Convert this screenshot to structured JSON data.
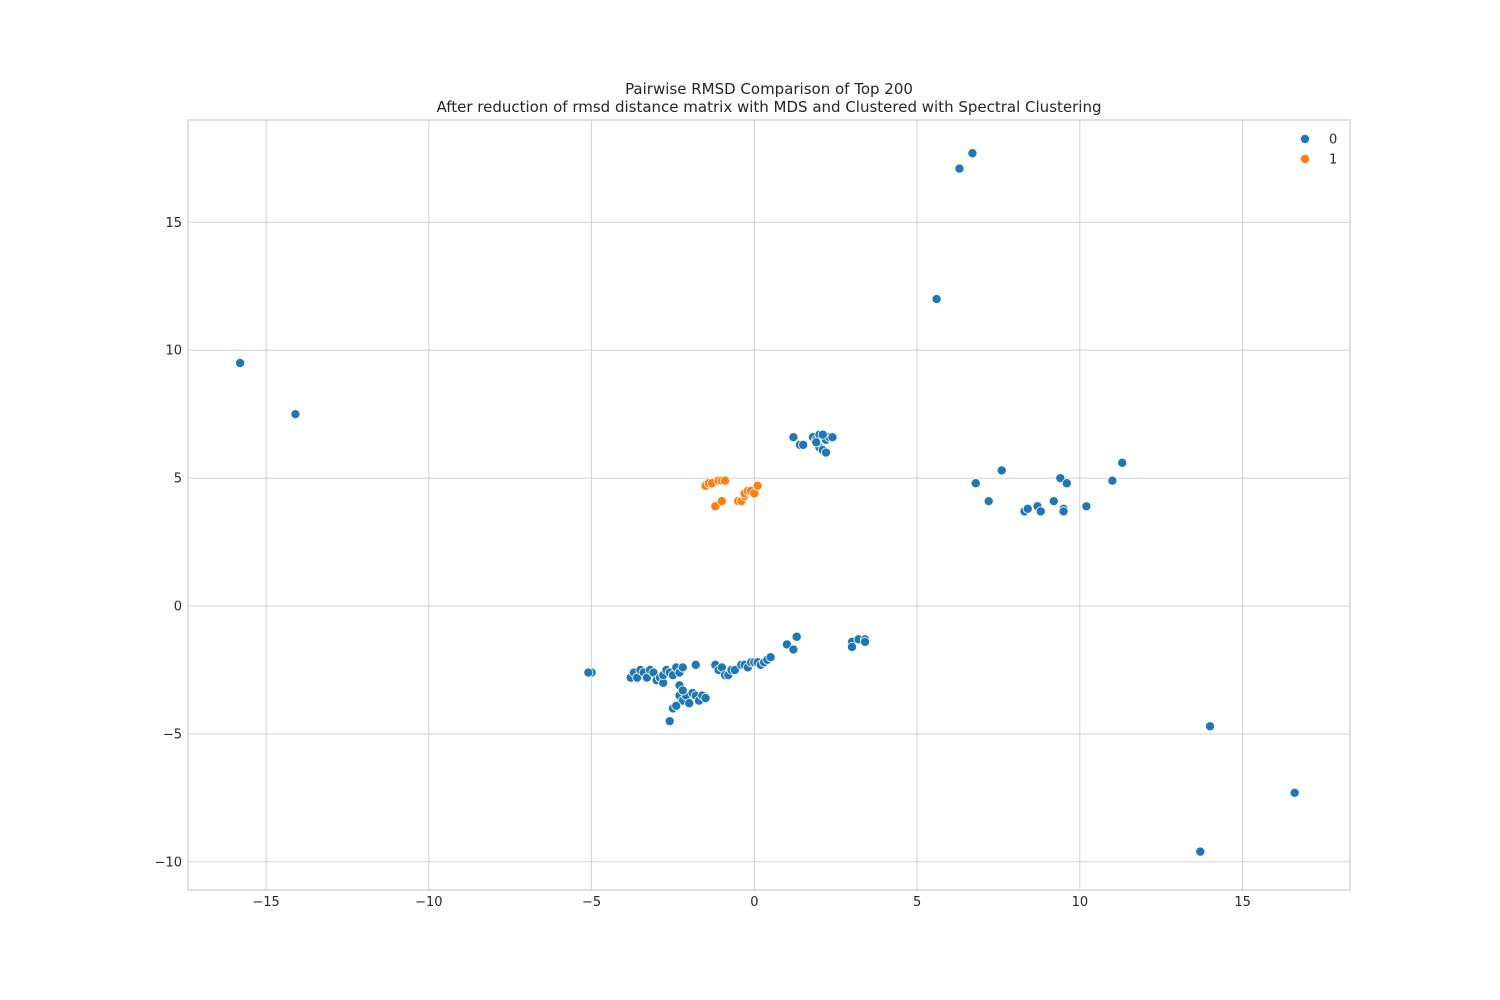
{
  "chart_data": {
    "type": "scatter",
    "title": "Pairwise RMSD Comparison of Top 200",
    "subtitle": "After reduction of rmsd distance matrix with MDS and Clustered with Spectral Clustering",
    "xlabel": "",
    "ylabel": "",
    "xlim": [
      -17.4,
      18.3
    ],
    "ylim": [
      -11.1,
      19.0
    ],
    "xticks": [
      -15,
      -10,
      -5,
      0,
      5,
      10,
      15
    ],
    "yticks": [
      -10,
      -5,
      0,
      5,
      10,
      15
    ],
    "xtick_labels": [
      "−15",
      "−10",
      "−5",
      "0",
      "5",
      "10",
      "15"
    ],
    "ytick_labels": [
      "−10",
      "−5",
      "0",
      "5",
      "10",
      "15"
    ],
    "grid": true,
    "legend_position": "top-right",
    "series": [
      {
        "name": "0",
        "color": "#1f77b4",
        "points": [
          [
            -15.8,
            9.5
          ],
          [
            -14.1,
            7.5
          ],
          [
            5.6,
            12.0
          ],
          [
            6.3,
            17.1
          ],
          [
            6.7,
            17.7
          ],
          [
            1.2,
            6.6
          ],
          [
            1.4,
            6.3
          ],
          [
            1.5,
            6.3
          ],
          [
            1.8,
            6.6
          ],
          [
            1.9,
            6.5
          ],
          [
            2.0,
            6.7
          ],
          [
            2.0,
            6.2
          ],
          [
            2.1,
            6.1
          ],
          [
            2.2,
            6.0
          ],
          [
            2.2,
            6.5
          ],
          [
            2.3,
            6.6
          ],
          [
            2.4,
            6.6
          ],
          [
            1.9,
            6.4
          ],
          [
            2.1,
            6.7
          ],
          [
            6.8,
            4.8
          ],
          [
            7.2,
            4.1
          ],
          [
            7.6,
            5.3
          ],
          [
            8.3,
            3.7
          ],
          [
            8.4,
            3.8
          ],
          [
            8.7,
            3.9
          ],
          [
            8.8,
            3.7
          ],
          [
            9.2,
            4.1
          ],
          [
            9.4,
            5.0
          ],
          [
            9.5,
            3.8
          ],
          [
            9.5,
            3.7
          ],
          [
            9.6,
            4.8
          ],
          [
            10.2,
            3.9
          ],
          [
            11.0,
            4.9
          ],
          [
            11.3,
            5.6
          ],
          [
            -5.0,
            -2.6
          ],
          [
            -5.1,
            -2.6
          ],
          [
            -3.8,
            -2.8
          ],
          [
            -3.7,
            -2.6
          ],
          [
            -3.6,
            -2.8
          ],
          [
            -3.5,
            -2.5
          ],
          [
            -3.4,
            -2.6
          ],
          [
            -3.3,
            -2.8
          ],
          [
            -3.2,
            -2.5
          ],
          [
            -3.1,
            -2.6
          ],
          [
            -3.0,
            -2.9
          ],
          [
            -2.9,
            -2.8
          ],
          [
            -2.8,
            -3.0
          ],
          [
            -2.8,
            -2.7
          ],
          [
            -2.7,
            -2.5
          ],
          [
            -2.6,
            -2.6
          ],
          [
            -2.5,
            -2.7
          ],
          [
            -2.4,
            -2.4
          ],
          [
            -2.3,
            -2.6
          ],
          [
            -2.3,
            -3.1
          ],
          [
            -2.2,
            -2.4
          ],
          [
            -2.3,
            -3.5
          ],
          [
            -2.2,
            -3.7
          ],
          [
            -2.1,
            -3.5
          ],
          [
            -2.0,
            -3.8
          ],
          [
            -1.9,
            -3.4
          ],
          [
            -1.8,
            -3.5
          ],
          [
            -1.7,
            -3.7
          ],
          [
            -1.6,
            -3.5
          ],
          [
            -1.5,
            -3.6
          ],
          [
            -2.5,
            -4.0
          ],
          [
            -2.4,
            -3.9
          ],
          [
            -2.6,
            -4.5
          ],
          [
            -1.8,
            -2.3
          ],
          [
            -2.2,
            -3.3
          ],
          [
            -1.2,
            -2.3
          ],
          [
            -1.1,
            -2.5
          ],
          [
            -1.0,
            -2.4
          ],
          [
            -0.9,
            -2.7
          ],
          [
            -0.8,
            -2.7
          ],
          [
            -0.7,
            -2.5
          ],
          [
            -0.6,
            -2.5
          ],
          [
            -0.4,
            -2.3
          ],
          [
            -0.3,
            -2.3
          ],
          [
            -0.2,
            -2.4
          ],
          [
            -0.1,
            -2.2
          ],
          [
            0.0,
            -2.2
          ],
          [
            0.1,
            -2.2
          ],
          [
            0.2,
            -2.3
          ],
          [
            0.3,
            -2.2
          ],
          [
            0.4,
            -2.1
          ],
          [
            0.5,
            -2.0
          ],
          [
            1.0,
            -1.5
          ],
          [
            1.2,
            -1.7
          ],
          [
            1.3,
            -1.2
          ],
          [
            3.0,
            -1.4
          ],
          [
            3.0,
            -1.6
          ],
          [
            3.2,
            -1.3
          ],
          [
            3.4,
            -1.3
          ],
          [
            3.4,
            -1.4
          ],
          [
            14.0,
            -4.7
          ],
          [
            16.6,
            -7.3
          ],
          [
            13.7,
            -9.6
          ]
        ]
      },
      {
        "name": "1",
        "color": "#ff7f0e",
        "points": [
          [
            -1.5,
            4.7
          ],
          [
            -1.4,
            4.8
          ],
          [
            -1.3,
            4.8
          ],
          [
            -1.1,
            4.9
          ],
          [
            -1.0,
            4.9
          ],
          [
            -0.9,
            4.9
          ],
          [
            -1.2,
            3.9
          ],
          [
            -1.0,
            4.1
          ],
          [
            -0.5,
            4.1
          ],
          [
            -0.4,
            4.1
          ],
          [
            -0.3,
            4.3
          ],
          [
            -0.3,
            4.4
          ],
          [
            -0.2,
            4.5
          ],
          [
            -0.1,
            4.5
          ],
          [
            0.0,
            4.4
          ],
          [
            0.1,
            4.7
          ]
        ]
      }
    ]
  }
}
